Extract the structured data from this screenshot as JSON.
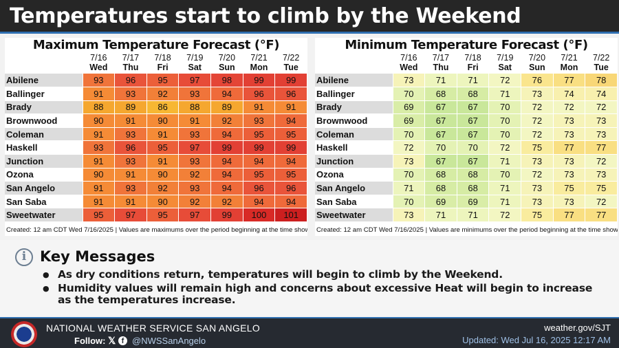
{
  "header": {
    "title": "Temperatures start to climb by the Weekend"
  },
  "columns": [
    {
      "date": "7/16",
      "dow": "Wed"
    },
    {
      "date": "7/17",
      "dow": "Thu"
    },
    {
      "date": "7/18",
      "dow": "Fri"
    },
    {
      "date": "7/19",
      "dow": "Sat"
    },
    {
      "date": "7/20",
      "dow": "Sun"
    },
    {
      "date": "7/21",
      "dow": "Mon"
    },
    {
      "date": "7/22",
      "dow": "Tue"
    }
  ],
  "cities": [
    "Abilene",
    "Ballinger",
    "Brady",
    "Brownwood",
    "Coleman",
    "Haskell",
    "Junction",
    "Ozona",
    "San Angelo",
    "San Saba",
    "Sweetwater"
  ],
  "max_table": {
    "title": "Maximum Temperature Forecast (°F)",
    "values": [
      [
        93,
        96,
        95,
        97,
        98,
        99,
        99
      ],
      [
        91,
        93,
        92,
        93,
        94,
        96,
        96
      ],
      [
        88,
        89,
        86,
        88,
        89,
        91,
        91
      ],
      [
        90,
        91,
        90,
        91,
        92,
        93,
        94
      ],
      [
        91,
        93,
        91,
        93,
        94,
        95,
        95
      ],
      [
        93,
        96,
        95,
        97,
        99,
        99,
        99
      ],
      [
        91,
        93,
        91,
        93,
        94,
        94,
        94
      ],
      [
        90,
        91,
        90,
        92,
        94,
        95,
        95
      ],
      [
        91,
        93,
        92,
        93,
        94,
        96,
        96
      ],
      [
        91,
        91,
        90,
        92,
        92,
        94,
        94
      ],
      [
        95,
        97,
        95,
        97,
        99,
        100,
        101
      ]
    ],
    "footnote": "Created: 12 am CDT Wed 7/16/2025  |  Values are maximums over the period beginning at the time shown."
  },
  "min_table": {
    "title": "Minimum Temperature Forecast (°F)",
    "values": [
      [
        73,
        71,
        71,
        72,
        76,
        77,
        78
      ],
      [
        70,
        68,
        68,
        71,
        73,
        74,
        74
      ],
      [
        69,
        67,
        67,
        70,
        72,
        72,
        72
      ],
      [
        69,
        67,
        67,
        70,
        72,
        73,
        73
      ],
      [
        70,
        67,
        67,
        70,
        72,
        73,
        73
      ],
      [
        72,
        70,
        70,
        72,
        75,
        77,
        77
      ],
      [
        73,
        67,
        67,
        71,
        73,
        73,
        72
      ],
      [
        70,
        68,
        68,
        70,
        72,
        73,
        73
      ],
      [
        71,
        68,
        68,
        71,
        73,
        75,
        75
      ],
      [
        70,
        69,
        69,
        71,
        73,
        73,
        72
      ],
      [
        73,
        71,
        71,
        72,
        75,
        77,
        77
      ]
    ],
    "footnote": "Created: 12 am CDT Wed 7/16/2025  |  Values are minimums over the period beginning at the time shown."
  },
  "key_messages": {
    "icon": "info-icon",
    "title": "Key Messages",
    "items": [
      "As dry conditions return, temperatures will begin to climb by the Weekend.",
      "Humidity values will remain high and concerns about excessive Heat will begin to increase as the temperatures increase."
    ]
  },
  "footer": {
    "org": "NATIONAL WEATHER SERVICE SAN ANGELO",
    "follow_label": "Follow:",
    "x_icon_glyph": "𝕏",
    "fb_icon_glyph": "f",
    "handle": "@NWSSanAngelo",
    "url": "weather.gov/SJT",
    "updated": "Updated: Wed Jul 16, 2025 12:17 AM"
  },
  "colors": {
    "header_bg": "#262626",
    "accent_blue": "#2f6fb0",
    "max_scale": {
      "86": "#f7b733",
      "88": "#f5a72f",
      "89": "#f5a72f",
      "90": "#f58b36",
      "91": "#f58b36",
      "92": "#f28038",
      "93": "#f0743a",
      "94": "#ef6a3a",
      "95": "#ec5f39",
      "96": "#e9543a",
      "97": "#e74c38",
      "98": "#e44536",
      "99": "#e24034",
      "100": "#d82a26",
      "101": "#cc1f1f"
    },
    "min_scale": {
      "67": "#c9e79a",
      "68": "#d6eca4",
      "69": "#d9eda7",
      "70": "#e4f2b4",
      "71": "#edf5bd",
      "72": "#f3f6c2",
      "73": "#f6f3b8",
      "74": "#f8f0ae",
      "75": "#f9ec9e",
      "76": "#fae58d",
      "77": "#f9df82",
      "78": "#f8d777"
    }
  }
}
